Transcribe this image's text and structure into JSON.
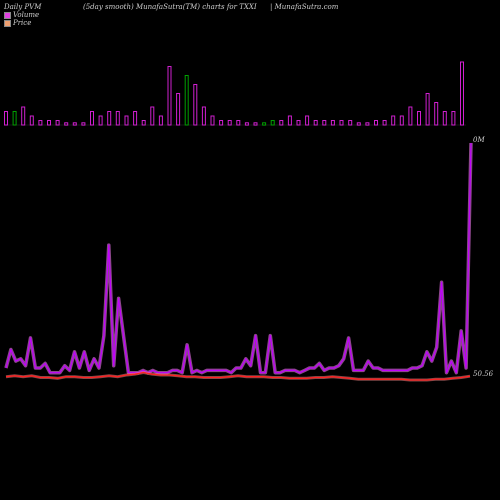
{
  "header": {
    "left": "Daily PVM",
    "center": "(5day smooth) MunafaSutra(TM) charts for TXXI",
    "right": "| MunafaSutra.com"
  },
  "legend": [
    {
      "label": "Volume",
      "color": "#e040e0"
    },
    {
      "label": "Price",
      "color": "#f08060"
    }
  ],
  "chart_data": {
    "type": "bar+line",
    "volume_bars": {
      "values": [
        3,
        3,
        4,
        2,
        1,
        1,
        1,
        0.5,
        0.5,
        0.5,
        3,
        2,
        3,
        3,
        2,
        3,
        1,
        4,
        2,
        13,
        7,
        11,
        9,
        4,
        2,
        1,
        1,
        1,
        0.5,
        0.5,
        0.5,
        1,
        1,
        2,
        1,
        2,
        1,
        1,
        1,
        1,
        1,
        0.5,
        0.5,
        1,
        1,
        2,
        2,
        4,
        3,
        7,
        5,
        3,
        3,
        14
      ],
      "colors": [
        "pink",
        "green",
        "pink",
        "pink",
        "pink",
        "pink",
        "pink",
        "pink",
        "pink",
        "pink",
        "pink",
        "pink",
        "pink",
        "pink",
        "pink",
        "pink",
        "pink",
        "pink",
        "pink",
        "pink",
        "pink",
        "green",
        "pink",
        "pink",
        "pink",
        "pink",
        "pink",
        "pink",
        "pink",
        "pink",
        "green",
        "green",
        "pink",
        "pink",
        "pink",
        "pink",
        "pink",
        "pink",
        "pink",
        "pink",
        "pink",
        "pink",
        "pink",
        "pink",
        "pink",
        "pink",
        "pink",
        "pink",
        "pink",
        "pink",
        "pink",
        "pink",
        "pink",
        "pink"
      ],
      "color_map": {
        "pink": "#d020d0",
        "green": "#00a000"
      }
    },
    "volume_line": {
      "values": [
        3,
        11,
        6,
        7,
        4,
        16,
        3,
        3,
        5,
        1,
        1,
        1,
        4,
        2,
        10,
        3,
        10,
        2,
        7,
        3,
        17,
        56,
        4,
        33,
        17,
        1,
        1,
        1,
        2,
        1,
        2,
        1,
        1,
        1,
        2,
        2,
        1,
        13,
        1,
        2,
        1,
        2,
        2,
        2,
        2,
        2,
        1,
        3,
        3,
        7,
        4,
        17,
        1,
        1,
        17,
        1,
        1,
        2,
        2,
        2,
        1,
        2,
        3,
        3,
        5,
        2,
        3,
        3,
        4,
        7,
        16,
        2,
        2,
        2,
        6,
        3,
        3,
        2,
        2,
        2,
        2,
        2,
        2,
        3,
        3,
        4,
        10,
        6,
        12,
        40,
        1,
        6,
        1,
        19,
        3,
        100
      ],
      "stroke": "#c000ff"
    },
    "price_line": {
      "values": [
        50.5,
        50.6,
        50.5,
        50.6,
        50.4,
        50.4,
        50.3,
        50.5,
        50.5,
        50.4,
        50.4,
        50.5,
        50.6,
        50.5,
        50.7,
        50.8,
        51.0,
        50.8,
        50.7,
        50.7,
        50.6,
        50.5,
        50.5,
        50.4,
        50.4,
        50.4,
        50.5,
        50.6,
        50.5,
        50.5,
        50.5,
        50.4,
        50.4,
        50.3,
        50.3,
        50.3,
        50.4,
        50.4,
        50.5,
        50.4,
        50.3,
        50.2,
        50.2,
        50.2,
        50.2,
        50.2,
        50.2,
        50.1,
        50.1,
        50.1,
        50.2,
        50.2,
        50.3,
        50.4,
        50.56
      ],
      "stroke": "#ff2020"
    },
    "axis_labels": {
      "volume_max": "0M",
      "price_last": "50.56"
    }
  }
}
